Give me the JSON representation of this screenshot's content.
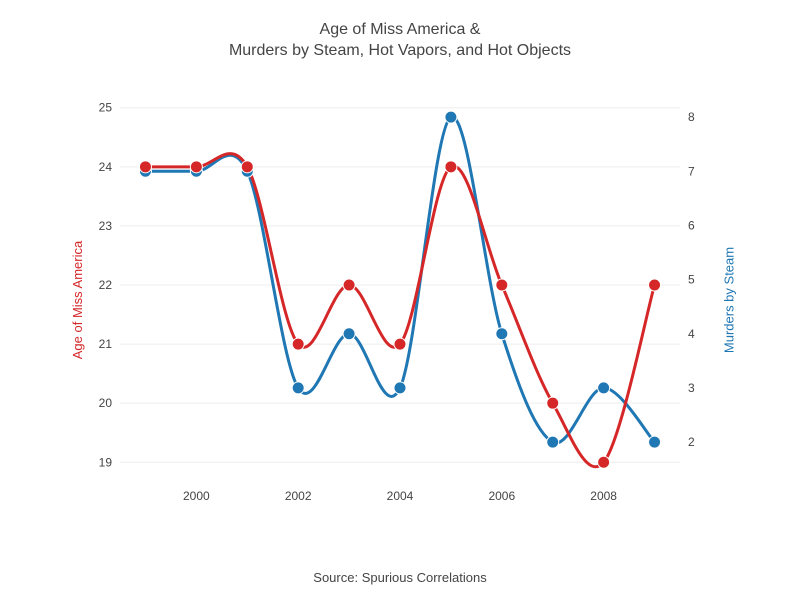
{
  "chart": {
    "title_line1": "Age of Miss America &",
    "title_line2": "Murders by Steam, Hot Vapors, and Hot Objects",
    "subtitle": "Source: Spurious Correlations",
    "y_left_label": "Age of Miss America",
    "y_right_label": "Murders by Steam",
    "x_values": [
      1999,
      2000,
      2001,
      2002,
      2003,
      2004,
      2005,
      2006,
      2007,
      2008,
      2009
    ],
    "series1": {
      "name": "Age of Miss America",
      "values": [
        24,
        24,
        24,
        21,
        22,
        21,
        24,
        22,
        20,
        19,
        22
      ],
      "color": "#d62728",
      "line_width": 3,
      "marker_size": 6
    },
    "series2": {
      "name": "Murders by Steam",
      "values": [
        7,
        7,
        7,
        3,
        4,
        3,
        8,
        4,
        2,
        3,
        2
      ],
      "color": "#1f77b4",
      "line_width": 3,
      "marker_size": 6
    },
    "y_left": {
      "min": 18.7,
      "max": 25.3,
      "ticks": [
        19,
        20,
        21,
        22,
        23,
        24,
        25
      ],
      "color": "#d62728"
    },
    "y_right": {
      "min": 1.3,
      "max": 8.5,
      "ticks": [
        2,
        3,
        4,
        5,
        6,
        7,
        8
      ],
      "color": "#1f77b4"
    },
    "x_axis": {
      "min": 1998.5,
      "max": 2009.5,
      "ticks": [
        2000,
        2002,
        2004,
        2006,
        2008
      ]
    },
    "background_color": "#ffffff",
    "grid_color": "#eeeeee",
    "text_color": "#444444",
    "title_fontsize": 16,
    "label_fontsize": 13,
    "tick_fontsize": 12
  }
}
